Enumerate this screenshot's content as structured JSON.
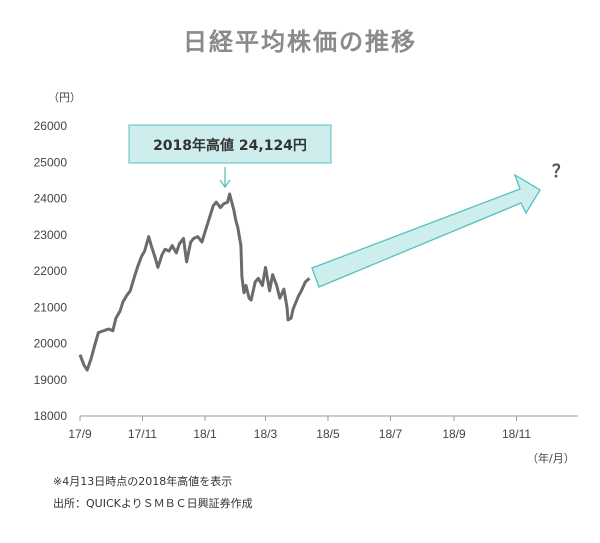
{
  "page_title": "日経平均株価の推移",
  "y_unit": "（円）",
  "x_unit": "（年/月）",
  "callout_label": "2018年高値 24,124円",
  "question_mark": "？",
  "footnote": "※4月13日時点の2018年高値を表示",
  "source": "出所：QUICKよりＳＭＢＣ日興証券作成",
  "colors": {
    "line": "#6b6b6b",
    "callout_fill": "#cdeeed",
    "callout_stroke": "#57bfc0",
    "arrow_fill": "#cdeeed",
    "arrow_stroke": "#57bfc0",
    "axis": "#999999"
  },
  "chart_data": {
    "type": "line",
    "ylim": [
      18000,
      26000
    ],
    "yticks": [
      18000,
      19000,
      20000,
      21000,
      22000,
      23000,
      24000,
      25000,
      26000
    ],
    "ytick_labels": [
      "18000",
      "19000",
      "20000",
      "21000",
      "22000",
      "23000",
      "24000",
      "25000",
      "26000"
    ],
    "xlim": [
      "2017-09-01",
      "2018-12-31"
    ],
    "xticks": [
      "2017-09-01",
      "2017-11-01",
      "2018-01-01",
      "2018-03-01",
      "2018-05-01",
      "2018-07-01",
      "2018-09-01",
      "2018-11-01"
    ],
    "xtick_labels": [
      "17/9",
      "17/11",
      "18/1",
      "18/3",
      "18/5",
      "18/7",
      "18/9",
      "18/11"
    ],
    "series": [
      {
        "x": [
          "2017-09-01",
          "2017-09-05",
          "2017-09-08",
          "2017-09-12",
          "2017-09-15",
          "2017-09-19",
          "2017-09-22",
          "2017-09-26",
          "2017-09-29",
          "2017-10-03",
          "2017-10-06",
          "2017-10-10",
          "2017-10-13",
          "2017-10-17",
          "2017-10-20",
          "2017-10-24",
          "2017-10-27",
          "2017-10-31",
          "2017-11-03",
          "2017-11-07",
          "2017-11-09",
          "2017-11-13",
          "2017-11-16",
          "2017-11-20",
          "2017-11-23",
          "2017-11-27",
          "2017-11-30",
          "2017-12-04",
          "2017-12-07",
          "2017-12-11",
          "2017-12-14",
          "2017-12-18",
          "2017-12-21",
          "2017-12-25",
          "2017-12-29",
          "2018-01-04",
          "2018-01-09",
          "2018-01-12",
          "2018-01-16",
          "2018-01-19",
          "2018-01-23",
          "2018-01-25",
          "2018-01-29",
          "2018-01-31",
          "2018-02-02",
          "2018-02-05",
          "2018-02-06",
          "2018-02-08",
          "2018-02-10",
          "2018-02-13",
          "2018-02-15",
          "2018-02-19",
          "2018-02-22",
          "2018-02-26",
          "2018-03-01",
          "2018-03-05",
          "2018-03-08",
          "2018-03-12",
          "2018-03-15",
          "2018-03-19",
          "2018-03-22",
          "2018-03-23",
          "2018-03-26",
          "2018-03-28",
          "2018-04-02",
          "2018-04-05",
          "2018-04-09",
          "2018-04-13"
        ],
        "values": [
          19690,
          19400,
          19270,
          19600,
          19910,
          20300,
          20330,
          20370,
          20400,
          20350,
          20700,
          20890,
          21150,
          21340,
          21450,
          21830,
          22100,
          22400,
          22550,
          22950,
          22750,
          22400,
          22100,
          22450,
          22600,
          22550,
          22700,
          22500,
          22750,
          22900,
          22250,
          22800,
          22900,
          22950,
          22800,
          23350,
          23800,
          23900,
          23750,
          23850,
          23900,
          24124,
          23700,
          23400,
          23200,
          22700,
          21850,
          21400,
          21600,
          21250,
          21200,
          21700,
          21800,
          21600,
          22100,
          21450,
          21900,
          21600,
          21250,
          21500,
          21000,
          20650,
          20700,
          20950,
          21300,
          21450,
          21700,
          21800
        ]
      }
    ],
    "annotation": {
      "label": "2018年高値 24,124円",
      "x": "2018-01-25",
      "y": 24124
    }
  }
}
